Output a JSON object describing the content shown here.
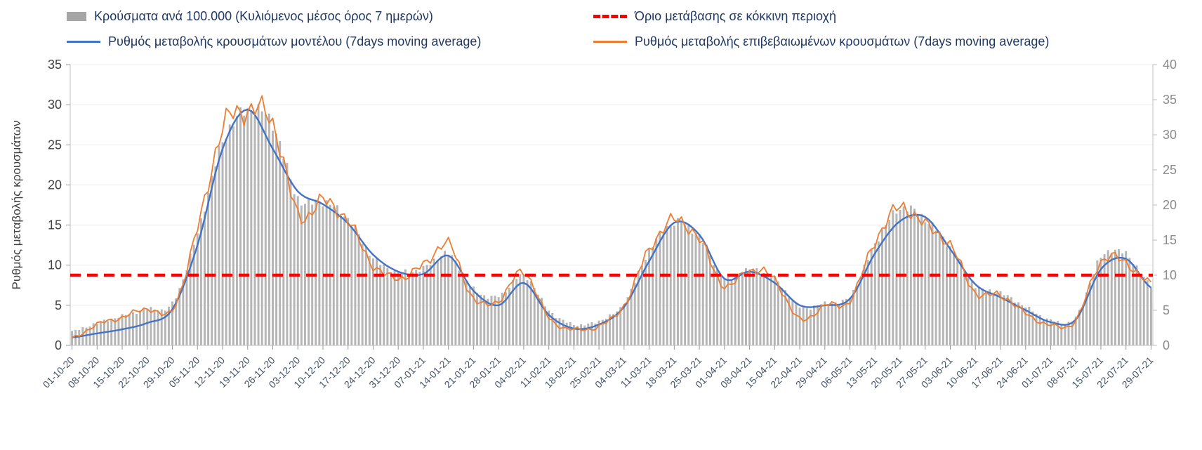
{
  "chart_data": {
    "type": "combo-bar-line",
    "title": "",
    "sampling": "values read at weekly x-axis tick positions; chart has daily resolution",
    "categories": [
      "01-10-20",
      "08-10-20",
      "15-10-20",
      "22-10-20",
      "29-10-20",
      "05-11-20",
      "12-11-20",
      "19-11-20",
      "26-11-20",
      "03-12-20",
      "10-12-20",
      "17-12-20",
      "24-12-20",
      "31-12-20",
      "07-01-21",
      "14-01-21",
      "21-01-21",
      "28-01-21",
      "04-02-21",
      "11-02-21",
      "18-02-21",
      "25-02-21",
      "04-03-21",
      "11-03-21",
      "18-03-21",
      "25-03-21",
      "01-04-21",
      "08-04-21",
      "15-04-21",
      "22-04-21",
      "29-04-21",
      "06-05-21",
      "13-05-21",
      "20-05-21",
      "27-05-21",
      "03-06-21",
      "10-06-21",
      "17-06-21",
      "24-06-21",
      "01-07-21",
      "08-07-21",
      "15-07-21",
      "22-07-21",
      "29-07-21"
    ],
    "series": [
      {
        "name": "Κρούσματα ανά 100.000 (Κυλιόμενος μέσος όρος 7 ημερών)",
        "type": "bar",
        "axis": "right",
        "color": "#b5b5b5",
        "values": [
          2.0,
          3.2,
          4.2,
          5.2,
          6.0,
          16.0,
          29.0,
          33.5,
          31.5,
          21.0,
          20.5,
          18.0,
          12.5,
          10.5,
          11.0,
          13.0,
          8.0,
          7.0,
          10.0,
          5.0,
          3.0,
          3.5,
          6.0,
          13.5,
          17.5,
          15.5,
          9.5,
          10.8,
          9.5,
          5.5,
          6.0,
          7.0,
          14.5,
          19.5,
          18.0,
          14.0,
          8.5,
          7.5,
          5.5,
          3.6,
          4.0,
          12.5,
          13.0,
          8.5
        ]
      },
      {
        "name": "Ρυθμός μεταβολής κρουσμάτων μοντέλου (7days moving average)",
        "type": "line",
        "axis": "left",
        "color": "#4472c4",
        "jagged": false,
        "values": [
          1.0,
          1.5,
          2.0,
          2.8,
          4.5,
          12.5,
          24.5,
          29.4,
          24.5,
          19.2,
          17.6,
          15.2,
          11.3,
          9.2,
          8.9,
          11.2,
          6.8,
          5.0,
          7.8,
          3.8,
          2.1,
          2.6,
          4.8,
          10.5,
          15.3,
          13.8,
          8.3,
          9.2,
          7.8,
          5.0,
          5.0,
          5.8,
          11.5,
          15.5,
          16.0,
          12.0,
          7.6,
          6.0,
          4.4,
          2.9,
          3.2,
          9.5,
          10.8,
          7.2
        ]
      },
      {
        "name": "Ρυθμός μεταβολής επιβεβαιωμένων κρουσμάτων (7days moving average)",
        "type": "line",
        "axis": "left",
        "color": "#ed7d31",
        "jagged": true,
        "values": [
          0.9,
          2.6,
          3.5,
          4.6,
          4.4,
          14.5,
          27.0,
          29.3,
          27.8,
          16.3,
          18.0,
          15.5,
          10.0,
          8.4,
          10.0,
          12.6,
          5.8,
          5.6,
          9.2,
          3.4,
          2.0,
          2.4,
          5.0,
          12.0,
          15.6,
          13.2,
          7.4,
          9.4,
          8.2,
          3.2,
          5.0,
          5.6,
          13.0,
          17.2,
          15.0,
          12.5,
          6.6,
          6.3,
          4.0,
          2.5,
          3.1,
          10.5,
          10.3,
          7.6
        ]
      }
    ],
    "threshold": {
      "name": "Όριο μετάβασης σε κόκκινη περιοχή",
      "value": 10,
      "axis": "right",
      "left_axis_equivalent": 8.75,
      "color": "#ff0000",
      "style": "dashed"
    },
    "left_axis": {
      "label": "Ρυθμός μεταβολής κρουσμάτων",
      "min": 0,
      "max": 35,
      "step": 5
    },
    "right_axis": {
      "label": "",
      "min": 0,
      "max": 40,
      "step": 5
    },
    "legend_position": "top",
    "grid": "horizontal-faint"
  }
}
